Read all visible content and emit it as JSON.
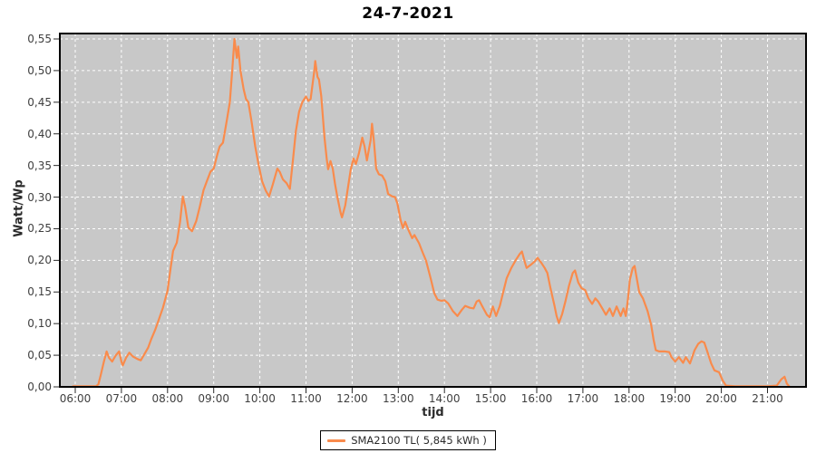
{
  "chart_data": {
    "type": "line",
    "title": "24-7-2021",
    "xlabel": "tijd",
    "ylabel": "Watt/Wp",
    "colors": {
      "series_orange": "#f98b4c",
      "plot_background": "#c8c8c8",
      "gridline": "#ffffff",
      "plot_border": "#000000",
      "tick_label": "#3f3f3f"
    },
    "x_axis": {
      "range_hours": [
        5.666,
        21.835
      ],
      "ticks": [
        {
          "hour": 6,
          "label": "06:00"
        },
        {
          "hour": 7,
          "label": "07:00"
        },
        {
          "hour": 8,
          "label": "08:00"
        },
        {
          "hour": 9,
          "label": "09:00"
        },
        {
          "hour": 10,
          "label": "10:00"
        },
        {
          "hour": 11,
          "label": "11:00"
        },
        {
          "hour": 12,
          "label": "12:00"
        },
        {
          "hour": 13,
          "label": "13:00"
        },
        {
          "hour": 14,
          "label": "14:00"
        },
        {
          "hour": 15,
          "label": "15:00"
        },
        {
          "hour": 16,
          "label": "16:00"
        },
        {
          "hour": 17,
          "label": "17:00"
        },
        {
          "hour": 18,
          "label": "18:00"
        },
        {
          "hour": 19,
          "label": "19:00"
        },
        {
          "hour": 20,
          "label": "20:00"
        },
        {
          "hour": 21,
          "label": "21:00"
        }
      ]
    },
    "y_axis": {
      "range": [
        0,
        0.5586
      ],
      "ticks": [
        {
          "value": 0.0,
          "label": "0,00"
        },
        {
          "value": 0.05,
          "label": "0,05"
        },
        {
          "value": 0.1,
          "label": "0,10"
        },
        {
          "value": 0.15,
          "label": "0,15"
        },
        {
          "value": 0.2,
          "label": "0,20"
        },
        {
          "value": 0.25,
          "label": "0,25"
        },
        {
          "value": 0.3,
          "label": "0,30"
        },
        {
          "value": 0.35,
          "label": "0,35"
        },
        {
          "value": 0.4,
          "label": "0,40"
        },
        {
          "value": 0.45,
          "label": "0,45"
        },
        {
          "value": 0.5,
          "label": "0,50"
        },
        {
          "value": 0.55,
          "label": "0,55"
        }
      ]
    },
    "grid": {
      "show": true,
      "style": "dashed",
      "dash": "3,3"
    },
    "legend": {
      "label": "SMA2100 TL( 5,845 kWh )",
      "position": "bottom"
    },
    "series": [
      {
        "name": "SMA2100 TL",
        "color": "#f98b4c",
        "points_hour_value": [
          [
            5.95,
            0.001
          ],
          [
            6.1,
            0.001
          ],
          [
            6.3,
            0.001
          ],
          [
            6.45,
            0.001
          ],
          [
            6.5,
            0.004
          ],
          [
            6.55,
            0.018
          ],
          [
            6.62,
            0.04
          ],
          [
            6.68,
            0.056
          ],
          [
            6.73,
            0.046
          ],
          [
            6.8,
            0.04
          ],
          [
            6.88,
            0.05
          ],
          [
            6.95,
            0.056
          ],
          [
            7.0,
            0.04
          ],
          [
            7.03,
            0.034
          ],
          [
            7.1,
            0.046
          ],
          [
            7.17,
            0.054
          ],
          [
            7.25,
            0.048
          ],
          [
            7.35,
            0.044
          ],
          [
            7.42,
            0.042
          ],
          [
            7.5,
            0.052
          ],
          [
            7.58,
            0.062
          ],
          [
            7.65,
            0.076
          ],
          [
            7.73,
            0.09
          ],
          [
            7.8,
            0.104
          ],
          [
            7.9,
            0.125
          ],
          [
            8.0,
            0.152
          ],
          [
            8.07,
            0.19
          ],
          [
            8.12,
            0.215
          ],
          [
            8.2,
            0.228
          ],
          [
            8.27,
            0.26
          ],
          [
            8.33,
            0.301
          ],
          [
            8.38,
            0.285
          ],
          [
            8.45,
            0.252
          ],
          [
            8.53,
            0.246
          ],
          [
            8.62,
            0.262
          ],
          [
            8.7,
            0.285
          ],
          [
            8.78,
            0.311
          ],
          [
            8.85,
            0.325
          ],
          [
            8.93,
            0.34
          ],
          [
            9.0,
            0.345
          ],
          [
            9.08,
            0.368
          ],
          [
            9.13,
            0.38
          ],
          [
            9.2,
            0.386
          ],
          [
            9.28,
            0.42
          ],
          [
            9.35,
            0.45
          ],
          [
            9.4,
            0.5
          ],
          [
            9.45,
            0.55
          ],
          [
            9.5,
            0.52
          ],
          [
            9.53,
            0.538
          ],
          [
            9.58,
            0.5
          ],
          [
            9.65,
            0.47
          ],
          [
            9.7,
            0.455
          ],
          [
            9.75,
            0.45
          ],
          [
            9.82,
            0.42
          ],
          [
            9.9,
            0.38
          ],
          [
            9.97,
            0.352
          ],
          [
            10.05,
            0.325
          ],
          [
            10.13,
            0.31
          ],
          [
            10.2,
            0.301
          ],
          [
            10.28,
            0.32
          ],
          [
            10.38,
            0.345
          ],
          [
            10.43,
            0.34
          ],
          [
            10.5,
            0.328
          ],
          [
            10.58,
            0.322
          ],
          [
            10.65,
            0.313
          ],
          [
            10.72,
            0.36
          ],
          [
            10.78,
            0.404
          ],
          [
            10.85,
            0.435
          ],
          [
            10.92,
            0.45
          ],
          [
            11.0,
            0.459
          ],
          [
            11.05,
            0.452
          ],
          [
            11.1,
            0.455
          ],
          [
            11.18,
            0.5
          ],
          [
            11.2,
            0.515
          ],
          [
            11.25,
            0.49
          ],
          [
            11.28,
            0.486
          ],
          [
            11.33,
            0.46
          ],
          [
            11.4,
            0.394
          ],
          [
            11.45,
            0.36
          ],
          [
            11.48,
            0.344
          ],
          [
            11.53,
            0.357
          ],
          [
            11.58,
            0.345
          ],
          [
            11.63,
            0.32
          ],
          [
            11.68,
            0.3
          ],
          [
            11.75,
            0.275
          ],
          [
            11.78,
            0.268
          ],
          [
            11.85,
            0.287
          ],
          [
            11.92,
            0.32
          ],
          [
            11.97,
            0.344
          ],
          [
            12.03,
            0.361
          ],
          [
            12.08,
            0.352
          ],
          [
            12.15,
            0.37
          ],
          [
            12.22,
            0.394
          ],
          [
            12.27,
            0.38
          ],
          [
            12.32,
            0.358
          ],
          [
            12.35,
            0.37
          ],
          [
            12.4,
            0.39
          ],
          [
            12.43,
            0.416
          ],
          [
            12.47,
            0.39
          ],
          [
            12.52,
            0.345
          ],
          [
            12.58,
            0.336
          ],
          [
            12.65,
            0.334
          ],
          [
            12.72,
            0.325
          ],
          [
            12.78,
            0.305
          ],
          [
            12.87,
            0.301
          ],
          [
            12.93,
            0.3
          ],
          [
            12.98,
            0.29
          ],
          [
            13.05,
            0.264
          ],
          [
            13.1,
            0.251
          ],
          [
            13.15,
            0.261
          ],
          [
            13.22,
            0.248
          ],
          [
            13.3,
            0.235
          ],
          [
            13.35,
            0.24
          ],
          [
            13.45,
            0.227
          ],
          [
            13.53,
            0.212
          ],
          [
            13.6,
            0.2
          ],
          [
            13.7,
            0.172
          ],
          [
            13.78,
            0.148
          ],
          [
            13.85,
            0.138
          ],
          [
            13.93,
            0.136
          ],
          [
            14.0,
            0.137
          ],
          [
            14.08,
            0.132
          ],
          [
            14.18,
            0.12
          ],
          [
            14.28,
            0.112
          ],
          [
            14.38,
            0.122
          ],
          [
            14.45,
            0.128
          ],
          [
            14.55,
            0.125
          ],
          [
            14.63,
            0.124
          ],
          [
            14.7,
            0.135
          ],
          [
            14.75,
            0.137
          ],
          [
            14.83,
            0.126
          ],
          [
            14.92,
            0.114
          ],
          [
            14.98,
            0.11
          ],
          [
            15.05,
            0.127
          ],
          [
            15.12,
            0.112
          ],
          [
            15.2,
            0.128
          ],
          [
            15.28,
            0.152
          ],
          [
            15.35,
            0.172
          ],
          [
            15.45,
            0.188
          ],
          [
            15.55,
            0.201
          ],
          [
            15.63,
            0.21
          ],
          [
            15.68,
            0.214
          ],
          [
            15.73,
            0.2
          ],
          [
            15.78,
            0.188
          ],
          [
            15.87,
            0.193
          ],
          [
            15.95,
            0.198
          ],
          [
            16.02,
            0.204
          ],
          [
            16.1,
            0.196
          ],
          [
            16.17,
            0.188
          ],
          [
            16.23,
            0.18
          ],
          [
            16.3,
            0.155
          ],
          [
            16.38,
            0.13
          ],
          [
            16.43,
            0.112
          ],
          [
            16.48,
            0.101
          ],
          [
            16.55,
            0.115
          ],
          [
            16.62,
            0.135
          ],
          [
            16.7,
            0.16
          ],
          [
            16.78,
            0.18
          ],
          [
            16.83,
            0.184
          ],
          [
            16.9,
            0.165
          ],
          [
            16.97,
            0.156
          ],
          [
            17.05,
            0.153
          ],
          [
            17.12,
            0.14
          ],
          [
            17.2,
            0.131
          ],
          [
            17.27,
            0.14
          ],
          [
            17.33,
            0.135
          ],
          [
            17.42,
            0.124
          ],
          [
            17.5,
            0.114
          ],
          [
            17.58,
            0.124
          ],
          [
            17.65,
            0.112
          ],
          [
            17.73,
            0.127
          ],
          [
            17.82,
            0.112
          ],
          [
            17.88,
            0.124
          ],
          [
            17.93,
            0.112
          ],
          [
            17.97,
            0.135
          ],
          [
            18.02,
            0.17
          ],
          [
            18.08,
            0.188
          ],
          [
            18.12,
            0.191
          ],
          [
            18.17,
            0.17
          ],
          [
            18.22,
            0.15
          ],
          [
            18.3,
            0.14
          ],
          [
            18.4,
            0.12
          ],
          [
            18.48,
            0.098
          ],
          [
            18.53,
            0.075
          ],
          [
            18.58,
            0.058
          ],
          [
            18.65,
            0.056
          ],
          [
            18.78,
            0.056
          ],
          [
            18.87,
            0.055
          ],
          [
            18.92,
            0.047
          ],
          [
            19.0,
            0.04
          ],
          [
            19.08,
            0.047
          ],
          [
            19.17,
            0.038
          ],
          [
            19.23,
            0.047
          ],
          [
            19.32,
            0.037
          ],
          [
            19.42,
            0.058
          ],
          [
            19.5,
            0.068
          ],
          [
            19.57,
            0.072
          ],
          [
            19.63,
            0.07
          ],
          [
            19.7,
            0.055
          ],
          [
            19.78,
            0.037
          ],
          [
            19.85,
            0.026
          ],
          [
            19.95,
            0.023
          ],
          [
            20.03,
            0.01
          ],
          [
            20.1,
            0.002
          ],
          [
            20.3,
            0.001
          ],
          [
            20.7,
            0.001
          ],
          [
            21.0,
            0.001
          ],
          [
            21.2,
            0.002
          ],
          [
            21.3,
            0.012
          ],
          [
            21.37,
            0.016
          ],
          [
            21.42,
            0.005
          ],
          [
            21.47,
            0.001
          ]
        ]
      }
    ]
  }
}
